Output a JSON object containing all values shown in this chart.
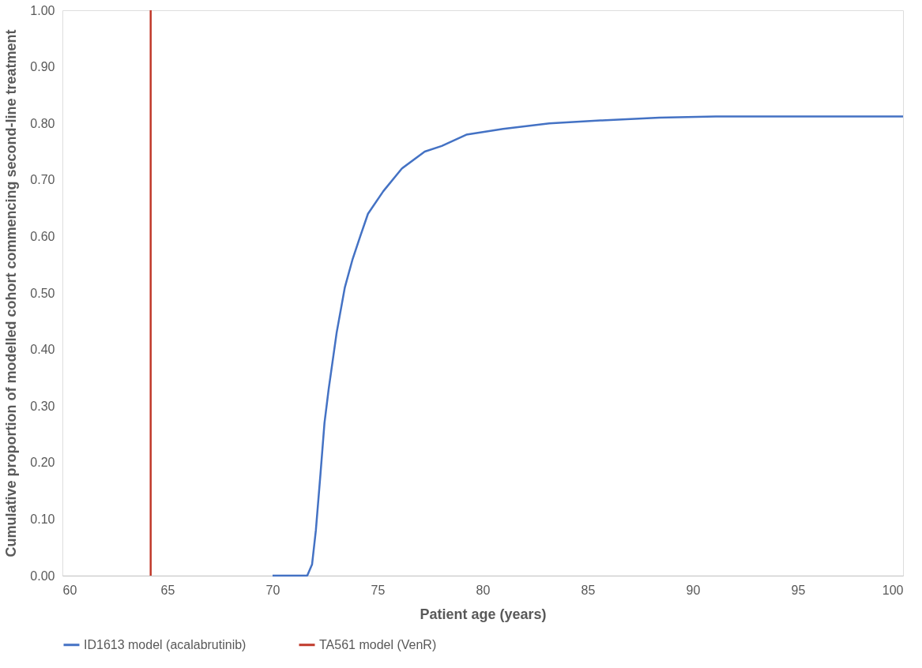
{
  "chart_data": {
    "type": "line",
    "xlabel": "Patient age (years)",
    "ylabel": "Cumulative proportion of modelled cohort commencing second-line treatment",
    "xlim": [
      60,
      100
    ],
    "xticks": [
      60,
      65,
      70,
      75,
      80,
      85,
      90,
      95,
      100
    ],
    "ylim": [
      0,
      1
    ],
    "yticks": [
      {
        "value": 0,
        "label": "0.00"
      },
      {
        "value": 0.1,
        "label": "0.10"
      },
      {
        "value": 0.2,
        "label": "0.20"
      },
      {
        "value": 0.3,
        "label": "0.30"
      },
      {
        "value": 0.4,
        "label": "0.40"
      },
      {
        "value": 0.5,
        "label": "0.50"
      },
      {
        "value": 0.6,
        "label": "0.60"
      },
      {
        "value": 0.7,
        "label": "0.70"
      },
      {
        "value": 0.8,
        "label": "0.80"
      },
      {
        "value": 0.9,
        "label": "0.90"
      },
      {
        "value": 1,
        "label": "1.00"
      }
    ],
    "grid": false,
    "legend": "bottom",
    "marker": "none",
    "line_style": "solid",
    "series": [
      {
        "name": "ID1613 model (acalabrutinib)",
        "color": "#4472c4",
        "x": [
          70,
          71.65,
          71.88,
          72.06,
          72.28,
          72.47,
          72.67,
          73.05,
          73.44,
          73.81,
          74.17,
          74.54,
          75.27,
          76.15,
          77.24,
          78.05,
          79.22,
          80.97,
          83.17,
          85.6,
          88.4,
          91.1,
          100
        ],
        "values": [
          0,
          0,
          0.02,
          0.08,
          0.18,
          0.27,
          0.33,
          0.43,
          0.51,
          0.56,
          0.6,
          0.64,
          0.68,
          0.72,
          0.75,
          0.76,
          0.78,
          0.79,
          0.8,
          0.805,
          0.81,
          0.812,
          0.812
        ]
      },
      {
        "name": "TA561 model (VenR)",
        "color": "#c0392b",
        "x": [
          64.2,
          64.2
        ],
        "values": [
          0,
          1
        ]
      }
    ]
  }
}
